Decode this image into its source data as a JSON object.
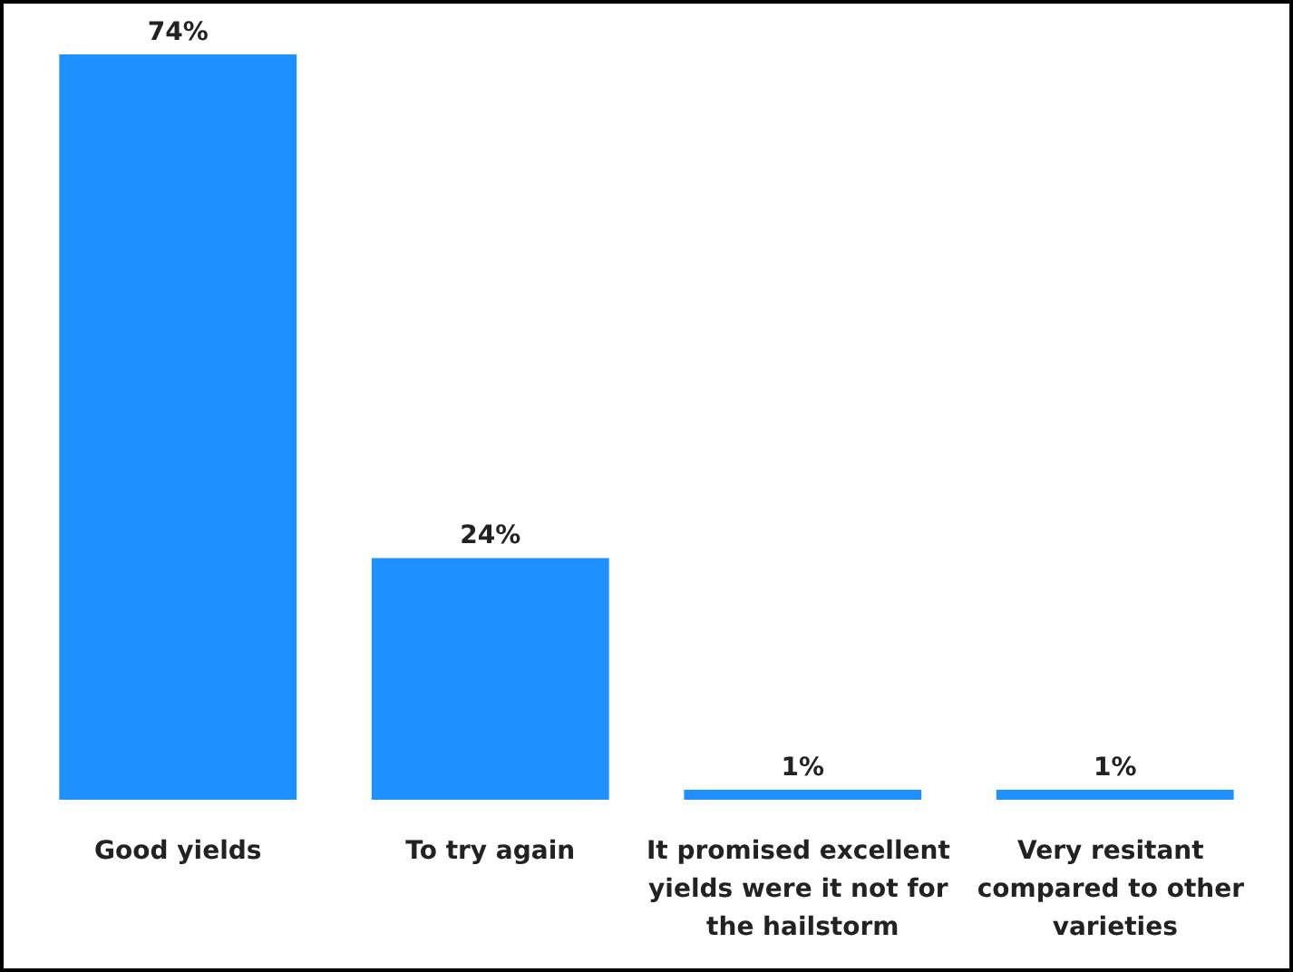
{
  "chart_data": {
    "type": "bar",
    "categories": [
      "Good yields",
      "To try again",
      "It promised excellent yields were it not for the hailstorm",
      "Very resitant compared to other varieties"
    ],
    "values": [
      74,
      24,
      1,
      1
    ],
    "color": "#1e90ff",
    "value_labels": [
      "74%",
      "24%",
      "1%",
      "1%"
    ],
    "grid": false
  }
}
